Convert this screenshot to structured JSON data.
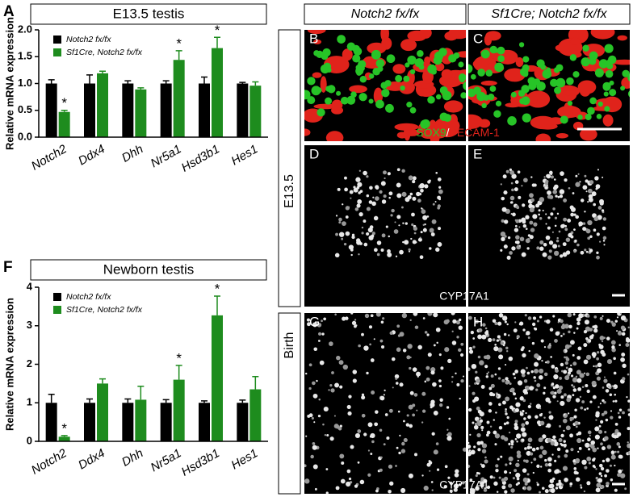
{
  "chart_data": [
    {
      "type": "bar",
      "panel_label": "A",
      "title": "E13.5 testis",
      "y_label": "Relative mRNA expression",
      "categories": [
        "Notch2",
        "Ddx4",
        "Dhh",
        "Nr5a1",
        "Hsd3b1",
        "Hes1"
      ],
      "series": [
        {
          "name": "Notch2 fx/fx",
          "color": "#000000",
          "values": [
            1.0,
            1.0,
            1.0,
            1.0,
            1.0,
            1.0
          ],
          "errors": [
            0.07,
            0.16,
            0.05,
            0.05,
            0.12,
            0.02
          ]
        },
        {
          "name": "Sf1Cre, Notch2 fx/fx",
          "color": "#1e8c1e",
          "values": [
            0.47,
            1.19,
            0.89,
            1.44,
            1.66,
            0.96
          ],
          "errors": [
            0.03,
            0.04,
            0.03,
            0.17,
            0.2,
            0.07
          ]
        }
      ],
      "ylim": [
        0,
        2
      ],
      "yticks": [
        {
          "value": 0,
          "label": "0.0"
        },
        0.5,
        {
          "value": 1,
          "label": "1.0"
        },
        1.5,
        {
          "value": 2,
          "label": "2.0"
        }
      ],
      "annotations": [
        {
          "text": "*",
          "category": "Notch2"
        },
        {
          "text": "*",
          "category": "Nr5a1"
        },
        {
          "text": "*",
          "category": "Hsd3b1"
        }
      ]
    },
    {
      "type": "bar",
      "panel_label": "F",
      "title": "Newborn testis",
      "y_label": "Relative mRNA expression",
      "categories": [
        "Notch2",
        "Ddx4",
        "Dhh",
        "Nr5a1",
        "Hsd3b1",
        "Hes1"
      ],
      "series": [
        {
          "name": "Notch2 fx/fx",
          "color": "#000000",
          "values": [
            1.0,
            1.0,
            1.0,
            1.0,
            1.0,
            1.0
          ],
          "errors": [
            0.22,
            0.1,
            0.1,
            0.08,
            0.05,
            0.07
          ]
        },
        {
          "name": "Sf1Cre, Notch2 fx/fx",
          "color": "#1e8c1e",
          "values": [
            0.12,
            1.5,
            1.08,
            1.6,
            3.27,
            1.35
          ],
          "errors": [
            0.03,
            0.12,
            0.35,
            0.37,
            0.5,
            0.33
          ]
        }
      ],
      "ylim": [
        0,
        4
      ],
      "yticks": [
        0,
        1,
        2,
        3,
        4
      ],
      "annotations": [
        {
          "text": "*",
          "category": "Notch2"
        },
        {
          "text": "*",
          "category": "Nr5a1"
        },
        {
          "text": "*",
          "category": "Hsd3b1"
        }
      ]
    }
  ],
  "figure": {
    "column_headers": [
      "Notch2 fx/fx",
      "Sf1Cre; Notch2 fx/fx"
    ],
    "row_labels": [
      "E13.5",
      "Birth"
    ],
    "panel_letters": [
      "B",
      "C",
      "D",
      "E",
      "G",
      "H"
    ],
    "stain_top": [
      "SOX9",
      "/",
      "PECAM-1"
    ],
    "stain_middle": "CYP17A1",
    "stain_bottom": "CYP17A1"
  }
}
